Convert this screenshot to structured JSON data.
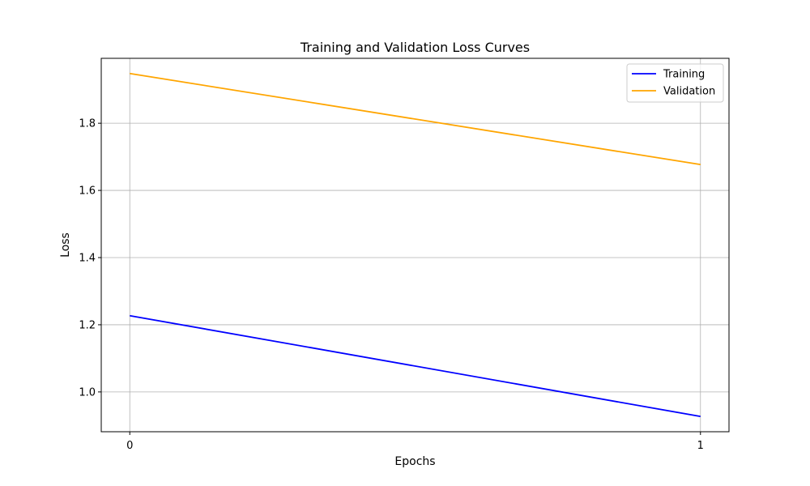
{
  "chart_data": {
    "type": "line",
    "title": "Training and Validation Loss Curves",
    "xlabel": "Epochs",
    "ylabel": "Loss",
    "x": [
      0,
      1
    ],
    "x_ticks": [
      0,
      1
    ],
    "x_tick_labels": [
      "0",
      "1"
    ],
    "xlim": [
      -0.05,
      1.05
    ],
    "y_ticks": [
      1.0,
      1.2,
      1.4,
      1.6,
      1.8
    ],
    "y_tick_labels": [
      "1.0",
      "1.2",
      "1.4",
      "1.6",
      "1.8"
    ],
    "ylim": [
      0.8815,
      1.9933
    ],
    "grid": true,
    "legend_position": "top-right",
    "series": [
      {
        "name": "Training",
        "values": [
          1.227,
          0.927
        ],
        "color": "#0000ff"
      },
      {
        "name": "Validation",
        "values": [
          1.948,
          1.677
        ],
        "color": "#ffa500"
      }
    ]
  }
}
